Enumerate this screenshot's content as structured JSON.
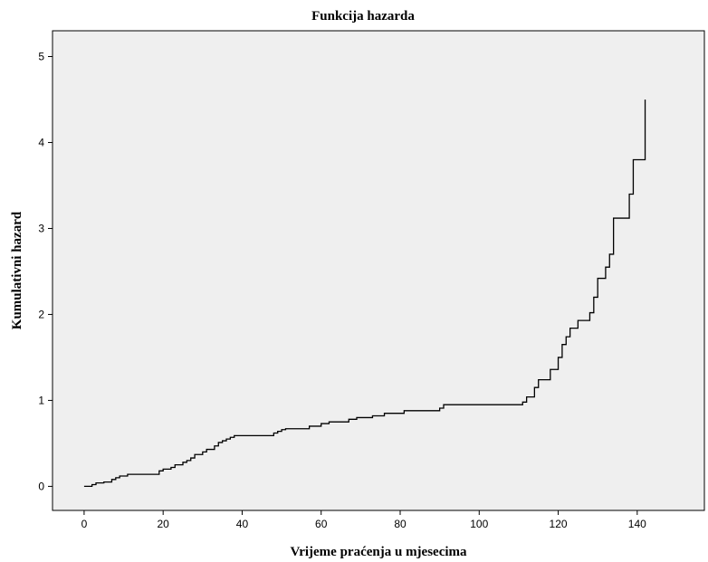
{
  "chart_data": {
    "type": "line",
    "title": "Funkcija hazarda",
    "xlabel": "Vrijeme praćenja u mjesecima",
    "ylabel": "Kumulativni hazard",
    "xlim": [
      -8,
      157
    ],
    "ylim": [
      -0.28,
      5.3
    ],
    "x_ticks": [
      0,
      20,
      40,
      60,
      80,
      100,
      120,
      140
    ],
    "y_ticks": [
      0,
      1,
      2,
      3,
      4,
      5
    ],
    "grid": false,
    "legend": "none",
    "plot_background": "#efefef",
    "line_color": "#000000",
    "series": [
      {
        "step": "post",
        "points": [
          [
            0,
            0.0
          ],
          [
            2,
            0.02
          ],
          [
            3,
            0.04
          ],
          [
            5,
            0.05
          ],
          [
            7,
            0.08
          ],
          [
            8,
            0.1
          ],
          [
            9,
            0.12
          ],
          [
            11,
            0.14
          ],
          [
            19,
            0.18
          ],
          [
            20,
            0.2
          ],
          [
            22,
            0.22
          ],
          [
            23,
            0.25
          ],
          [
            25,
            0.28
          ],
          [
            26,
            0.3
          ],
          [
            27,
            0.33
          ],
          [
            28,
            0.37
          ],
          [
            30,
            0.4
          ],
          [
            31,
            0.43
          ],
          [
            33,
            0.47
          ],
          [
            34,
            0.51
          ],
          [
            35,
            0.53
          ],
          [
            36,
            0.55
          ],
          [
            37,
            0.57
          ],
          [
            38,
            0.59
          ],
          [
            48,
            0.62
          ],
          [
            49,
            0.64
          ],
          [
            50,
            0.66
          ],
          [
            51,
            0.67
          ],
          [
            57,
            0.7
          ],
          [
            60,
            0.73
          ],
          [
            62,
            0.75
          ],
          [
            67,
            0.78
          ],
          [
            69,
            0.8
          ],
          [
            73,
            0.82
          ],
          [
            76,
            0.85
          ],
          [
            81,
            0.88
          ],
          [
            90,
            0.91
          ],
          [
            91,
            0.95
          ],
          [
            111,
            0.98
          ],
          [
            112,
            1.04
          ],
          [
            114,
            1.15
          ],
          [
            115,
            1.24
          ],
          [
            118,
            1.36
          ],
          [
            120,
            1.5
          ],
          [
            121,
            1.65
          ],
          [
            122,
            1.74
          ],
          [
            123,
            1.84
          ],
          [
            125,
            1.93
          ],
          [
            128,
            2.02
          ],
          [
            129,
            2.2
          ],
          [
            130,
            2.42
          ],
          [
            132,
            2.55
          ],
          [
            133,
            2.7
          ],
          [
            134,
            3.12
          ],
          [
            138,
            3.4
          ],
          [
            139,
            3.8
          ],
          [
            142,
            4.5
          ]
        ]
      }
    ]
  }
}
